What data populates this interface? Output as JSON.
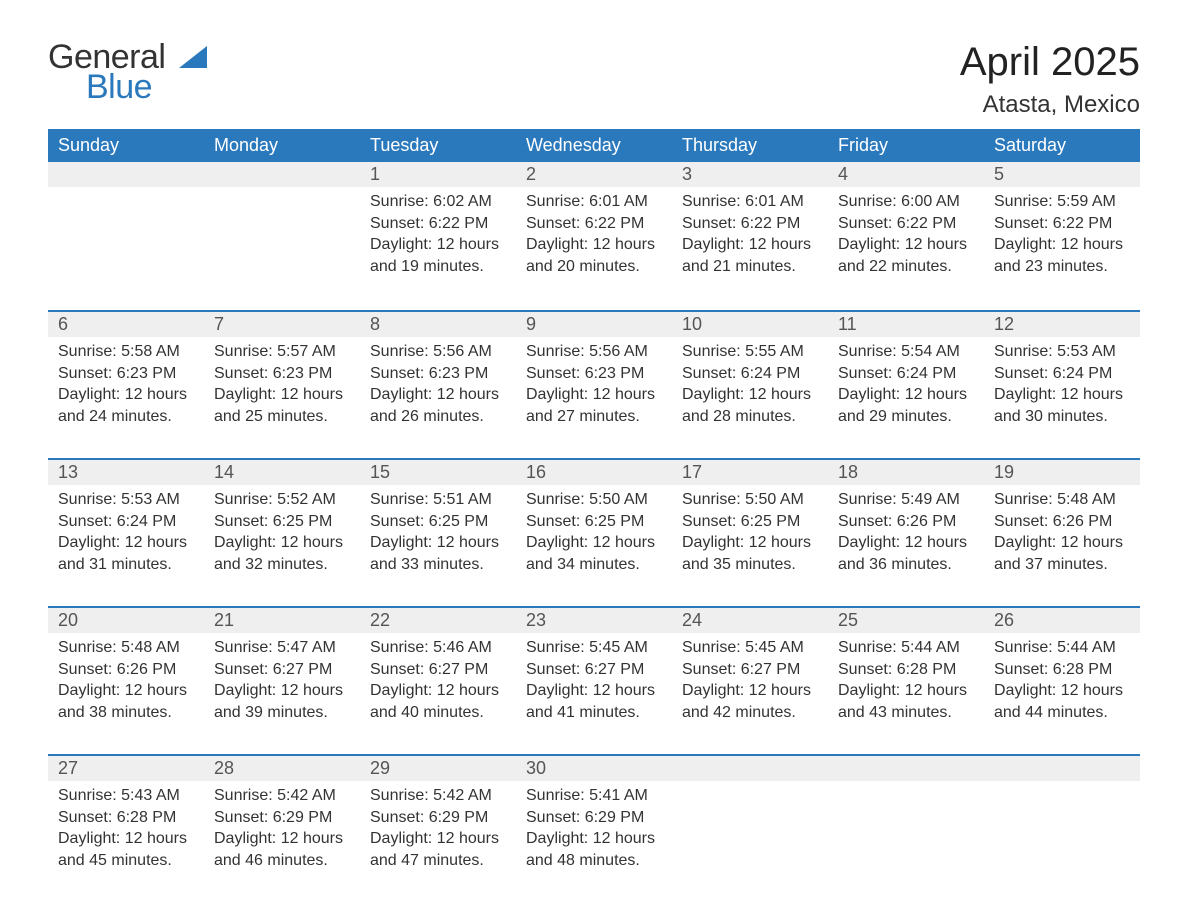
{
  "logo": {
    "text_general": "General",
    "text_blue": "Blue",
    "sail_color": "#2b79bd"
  },
  "header": {
    "title": "April 2025",
    "location": "Atasta, Mexico"
  },
  "theme": {
    "header_bg": "#2b79bd",
    "header_text": "#ffffff",
    "daynum_bg": "#efefef",
    "row_divider": "#2b79bd",
    "body_text": "#333333",
    "body_bg": "#ffffff",
    "title_fontsize": 40,
    "location_fontsize": 24,
    "weekday_fontsize": 18,
    "daynum_fontsize": 18,
    "body_fontsize": 16
  },
  "weekdays": [
    "Sunday",
    "Monday",
    "Tuesday",
    "Wednesday",
    "Thursday",
    "Friday",
    "Saturday"
  ],
  "weeks": [
    [
      null,
      null,
      {
        "n": "1",
        "sunrise": "6:02 AM",
        "sunset": "6:22 PM",
        "daylight": "12 hours and 19 minutes."
      },
      {
        "n": "2",
        "sunrise": "6:01 AM",
        "sunset": "6:22 PM",
        "daylight": "12 hours and 20 minutes."
      },
      {
        "n": "3",
        "sunrise": "6:01 AM",
        "sunset": "6:22 PM",
        "daylight": "12 hours and 21 minutes."
      },
      {
        "n": "4",
        "sunrise": "6:00 AM",
        "sunset": "6:22 PM",
        "daylight": "12 hours and 22 minutes."
      },
      {
        "n": "5",
        "sunrise": "5:59 AM",
        "sunset": "6:22 PM",
        "daylight": "12 hours and 23 minutes."
      }
    ],
    [
      {
        "n": "6",
        "sunrise": "5:58 AM",
        "sunset": "6:23 PM",
        "daylight": "12 hours and 24 minutes."
      },
      {
        "n": "7",
        "sunrise": "5:57 AM",
        "sunset": "6:23 PM",
        "daylight": "12 hours and 25 minutes."
      },
      {
        "n": "8",
        "sunrise": "5:56 AM",
        "sunset": "6:23 PM",
        "daylight": "12 hours and 26 minutes."
      },
      {
        "n": "9",
        "sunrise": "5:56 AM",
        "sunset": "6:23 PM",
        "daylight": "12 hours and 27 minutes."
      },
      {
        "n": "10",
        "sunrise": "5:55 AM",
        "sunset": "6:24 PM",
        "daylight": "12 hours and 28 minutes."
      },
      {
        "n": "11",
        "sunrise": "5:54 AM",
        "sunset": "6:24 PM",
        "daylight": "12 hours and 29 minutes."
      },
      {
        "n": "12",
        "sunrise": "5:53 AM",
        "sunset": "6:24 PM",
        "daylight": "12 hours and 30 minutes."
      }
    ],
    [
      {
        "n": "13",
        "sunrise": "5:53 AM",
        "sunset": "6:24 PM",
        "daylight": "12 hours and 31 minutes."
      },
      {
        "n": "14",
        "sunrise": "5:52 AM",
        "sunset": "6:25 PM",
        "daylight": "12 hours and 32 minutes."
      },
      {
        "n": "15",
        "sunrise": "5:51 AM",
        "sunset": "6:25 PM",
        "daylight": "12 hours and 33 minutes."
      },
      {
        "n": "16",
        "sunrise": "5:50 AM",
        "sunset": "6:25 PM",
        "daylight": "12 hours and 34 minutes."
      },
      {
        "n": "17",
        "sunrise": "5:50 AM",
        "sunset": "6:25 PM",
        "daylight": "12 hours and 35 minutes."
      },
      {
        "n": "18",
        "sunrise": "5:49 AM",
        "sunset": "6:26 PM",
        "daylight": "12 hours and 36 minutes."
      },
      {
        "n": "19",
        "sunrise": "5:48 AM",
        "sunset": "6:26 PM",
        "daylight": "12 hours and 37 minutes."
      }
    ],
    [
      {
        "n": "20",
        "sunrise": "5:48 AM",
        "sunset": "6:26 PM",
        "daylight": "12 hours and 38 minutes."
      },
      {
        "n": "21",
        "sunrise": "5:47 AM",
        "sunset": "6:27 PM",
        "daylight": "12 hours and 39 minutes."
      },
      {
        "n": "22",
        "sunrise": "5:46 AM",
        "sunset": "6:27 PM",
        "daylight": "12 hours and 40 minutes."
      },
      {
        "n": "23",
        "sunrise": "5:45 AM",
        "sunset": "6:27 PM",
        "daylight": "12 hours and 41 minutes."
      },
      {
        "n": "24",
        "sunrise": "5:45 AM",
        "sunset": "6:27 PM",
        "daylight": "12 hours and 42 minutes."
      },
      {
        "n": "25",
        "sunrise": "5:44 AM",
        "sunset": "6:28 PM",
        "daylight": "12 hours and 43 minutes."
      },
      {
        "n": "26",
        "sunrise": "5:44 AM",
        "sunset": "6:28 PM",
        "daylight": "12 hours and 44 minutes."
      }
    ],
    [
      {
        "n": "27",
        "sunrise": "5:43 AM",
        "sunset": "6:28 PM",
        "daylight": "12 hours and 45 minutes."
      },
      {
        "n": "28",
        "sunrise": "5:42 AM",
        "sunset": "6:29 PM",
        "daylight": "12 hours and 46 minutes."
      },
      {
        "n": "29",
        "sunrise": "5:42 AM",
        "sunset": "6:29 PM",
        "daylight": "12 hours and 47 minutes."
      },
      {
        "n": "30",
        "sunrise": "5:41 AM",
        "sunset": "6:29 PM",
        "daylight": "12 hours and 48 minutes."
      },
      null,
      null,
      null
    ]
  ],
  "labels": {
    "sunrise": "Sunrise: ",
    "sunset": "Sunset: ",
    "daylight": "Daylight: "
  }
}
